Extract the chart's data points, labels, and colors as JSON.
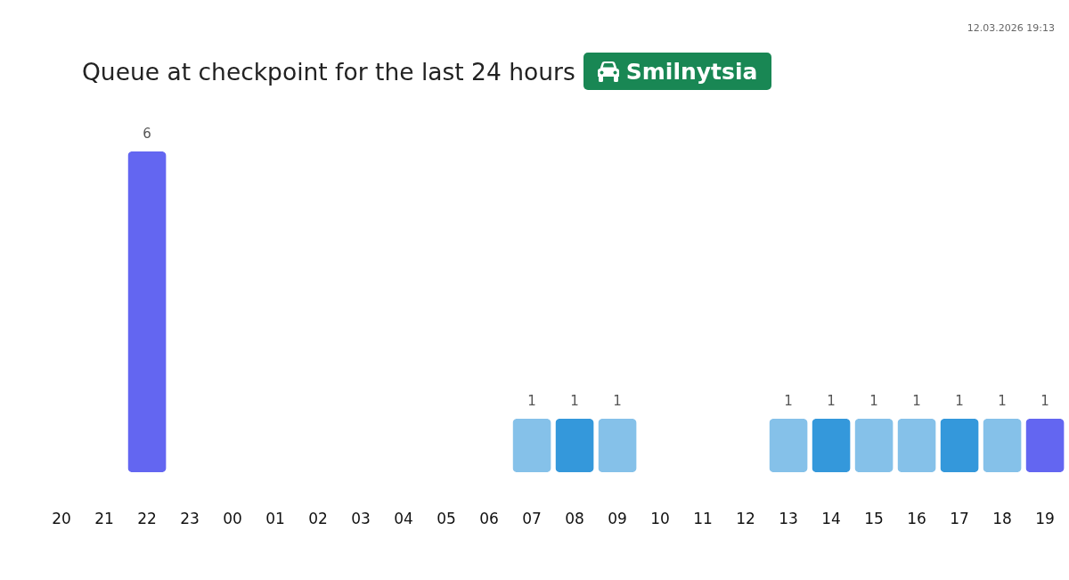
{
  "chart_data": {
    "type": "bar",
    "title": "Queue at checkpoint for the last 24 hours",
    "subtitle": "Smilnytsia",
    "annotations": [
      "12.03.2026 19:13"
    ],
    "categories": [
      "20",
      "21",
      "22",
      "23",
      "00",
      "01",
      "02",
      "03",
      "04",
      "05",
      "06",
      "07",
      "08",
      "09",
      "10",
      "11",
      "12",
      "13",
      "14",
      "15",
      "16",
      "17",
      "18",
      "19"
    ],
    "values": [
      null,
      null,
      6,
      null,
      null,
      null,
      null,
      null,
      null,
      null,
      null,
      1,
      1,
      1,
      null,
      null,
      null,
      1,
      1,
      1,
      1,
      1,
      1,
      1
    ],
    "colors": [
      null,
      null,
      "#6366f1",
      null,
      null,
      null,
      null,
      null,
      null,
      null,
      null,
      "#85c1e9",
      "#3498db",
      "#85c1e9",
      null,
      null,
      null,
      "#85c1e9",
      "#3498db",
      "#85c1e9",
      "#85c1e9",
      "#3498db",
      "#85c1e9",
      "#6366f1"
    ],
    "data_labels": true,
    "tick_labels": "x"
  }
}
